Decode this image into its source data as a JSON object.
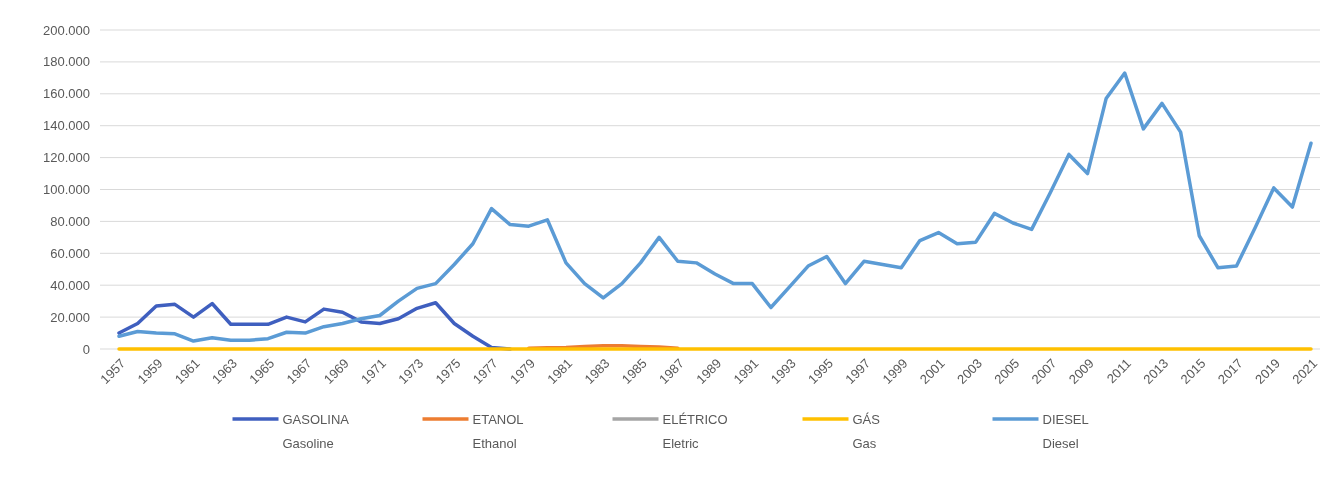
{
  "chart_data": {
    "type": "line",
    "categories": [
      "1957",
      null,
      "1959",
      null,
      "1961",
      null,
      "1963",
      null,
      "1965",
      null,
      "1967",
      null,
      "1969",
      null,
      "1971",
      null,
      "1973",
      null,
      "1975",
      null,
      "1977",
      null,
      "1979",
      null,
      "1981",
      null,
      "1983",
      null,
      "1985",
      null,
      "1987",
      null,
      "1989",
      null,
      "1991",
      null,
      "1993",
      null,
      "1995",
      null,
      "1997",
      null,
      "1999",
      null,
      "2001",
      null,
      "2003",
      null,
      "2005",
      null,
      "2007",
      null,
      "2009",
      null,
      "2011",
      null,
      "2013",
      null,
      "2015",
      null,
      "2017",
      null,
      "2019",
      null,
      "2021"
    ],
    "series": [
      {
        "name": "GASOLINA\nGasoline",
        "color": "#3f5fbf",
        "values": [
          10000,
          16000,
          27000,
          28000,
          20000,
          28500,
          15500,
          15500,
          15500,
          20000,
          17000,
          25000,
          23000,
          17000,
          16000,
          19000,
          25500,
          29000,
          16000,
          8000,
          1000,
          0,
          null,
          null,
          null,
          null,
          null,
          null,
          null,
          null,
          null,
          null,
          null,
          null,
          null,
          null,
          null,
          null,
          null,
          null,
          null,
          null,
          null,
          null,
          null,
          null,
          null,
          null,
          null,
          null,
          null,
          null,
          null,
          null,
          null,
          null,
          null,
          null,
          null,
          null,
          null,
          null,
          null,
          null,
          null
        ]
      },
      {
        "name": "ETANOL\nEthanol",
        "color": "#ed7d31",
        "values": [
          null,
          null,
          null,
          null,
          null,
          null,
          null,
          null,
          null,
          null,
          null,
          null,
          null,
          null,
          null,
          null,
          null,
          null,
          null,
          null,
          null,
          null,
          500,
          800,
          1000,
          1500,
          2000,
          2000,
          1500,
          1200,
          500,
          null,
          null,
          null,
          null,
          null,
          null,
          null,
          null,
          null,
          null,
          null,
          null,
          null,
          null,
          null,
          null,
          null,
          null,
          null,
          null,
          null,
          null,
          null,
          null,
          null,
          null,
          null,
          null,
          null,
          null,
          null,
          null,
          null,
          null
        ]
      },
      {
        "name": "ELÉTRICO\nEletric",
        "color": "#a5a5a5",
        "values": [
          null,
          null,
          null,
          null,
          null,
          null,
          null,
          null,
          null,
          null,
          null,
          null,
          null,
          null,
          null,
          null,
          null,
          null,
          null,
          null,
          null,
          null,
          null,
          null,
          null,
          null,
          null,
          null,
          null,
          null,
          null,
          null,
          null,
          null,
          null,
          null,
          null,
          null,
          null,
          null,
          null,
          null,
          null,
          null,
          null,
          null,
          null,
          null,
          null,
          null,
          null,
          null,
          null,
          null,
          null,
          null,
          null,
          null,
          null,
          null,
          null,
          null,
          null,
          null,
          null
        ]
      },
      {
        "name": "GÁS\nGas",
        "color": "#ffc000",
        "values": [
          0,
          0,
          0,
          0,
          0,
          0,
          0,
          0,
          0,
          0,
          0,
          0,
          0,
          0,
          0,
          0,
          0,
          0,
          0,
          0,
          0,
          0,
          0,
          0,
          0,
          0,
          0,
          0,
          0,
          0,
          0,
          0,
          0,
          0,
          0,
          0,
          0,
          0,
          0,
          0,
          0,
          0,
          0,
          0,
          0,
          0,
          0,
          0,
          0,
          0,
          0,
          0,
          0,
          0,
          0,
          0,
          0,
          0,
          0,
          0,
          0,
          0,
          0,
          0,
          0
        ]
      },
      {
        "name": "DIESEL\nDiesel",
        "color": "#5b9bd5",
        "values": [
          8000,
          11000,
          10000,
          9500,
          5000,
          7000,
          5500,
          5500,
          6500,
          10500,
          10000,
          14000,
          16000,
          19000,
          21000,
          30000,
          38000,
          41000,
          53000,
          66000,
          88000,
          78000,
          77000,
          81000,
          54000,
          41000,
          32000,
          41000,
          54000,
          70000,
          55000,
          54000,
          47000,
          41000,
          41000,
          26000,
          39000,
          52000,
          58000,
          41000,
          55000,
          53000,
          51000,
          68000,
          73000,
          66000,
          67000,
          85000,
          79000,
          75000,
          98000,
          122000,
          110000,
          157000,
          173000,
          138000,
          154000,
          136000,
          71000,
          51000,
          52000,
          76000,
          101000,
          89000,
          129000
        ]
      }
    ],
    "ylim": [
      0,
      200000
    ],
    "yticks": [
      0,
      {
        "value": 20000,
        "label": "20.000"
      },
      {
        "value": 40000,
        "label": "40.000"
      },
      {
        "value": 60000,
        "label": "60.000"
      },
      {
        "value": 80000,
        "label": "80.000"
      },
      {
        "value": 100000,
        "label": "100.000"
      },
      {
        "value": 120000,
        "label": "120.000"
      },
      {
        "value": 140000,
        "label": "140.000"
      },
      {
        "value": 160000,
        "label": "160.000"
      },
      {
        "value": 180000,
        "label": "180.000"
      },
      {
        "value": 200000,
        "label": "200.000"
      }
    ],
    "grid": "y",
    "legend": "bottom",
    "marker": "none",
    "line_style": "solid"
  }
}
